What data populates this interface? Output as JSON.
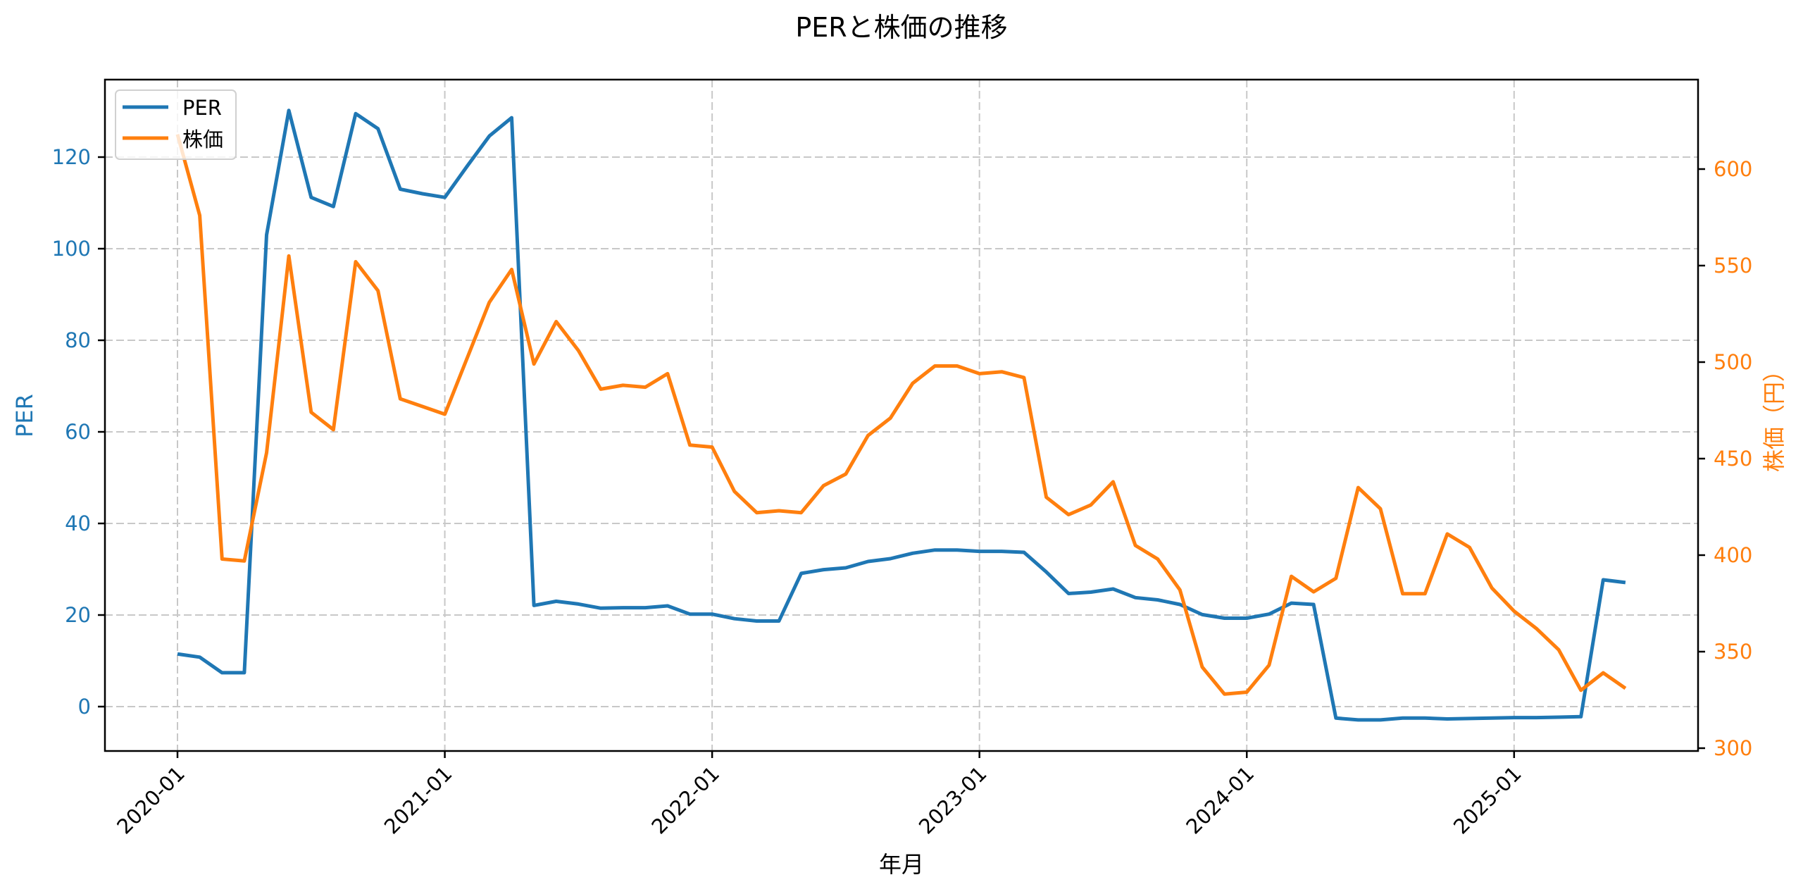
{
  "chart_data": {
    "type": "line",
    "title": "PERと株価の推移",
    "xlabel": "年月",
    "ylabel": "PER",
    "y2label": "株価（円）",
    "grid": true,
    "legend_position": "upper left",
    "legend": [
      "PER",
      "株価"
    ],
    "xticks": [
      "2020-01",
      "2021-01",
      "2022-01",
      "2023-01",
      "2024-01",
      "2025-01"
    ],
    "yticks": [
      0,
      20,
      40,
      60,
      80,
      100,
      120
    ],
    "y2ticks": [
      300,
      350,
      400,
      450,
      500,
      550,
      600
    ],
    "ylim": [
      -9.7,
      136.9
    ],
    "y2lim": [
      298.5,
      646.4
    ],
    "colors": {
      "PER": "#1f77b4",
      "株価": "#ff7f0e"
    },
    "x": [
      "2020-01",
      "2020-02",
      "2020-03",
      "2020-04",
      "2020-05",
      "2020-06",
      "2020-07",
      "2020-08",
      "2020-09",
      "2020-10",
      "2020-11",
      "2020-12",
      "2021-01",
      "2021-02",
      "2021-03",
      "2021-04",
      "2021-05",
      "2021-06",
      "2021-07",
      "2021-08",
      "2021-09",
      "2021-10",
      "2021-11",
      "2021-12",
      "2022-01",
      "2022-02",
      "2022-03",
      "2022-04",
      "2022-05",
      "2022-06",
      "2022-07",
      "2022-08",
      "2022-09",
      "2022-10",
      "2022-11",
      "2022-12",
      "2023-01",
      "2023-02",
      "2023-03",
      "2023-04",
      "2023-05",
      "2023-06",
      "2023-07",
      "2023-08",
      "2023-09",
      "2023-10",
      "2023-11",
      "2023-12",
      "2024-01",
      "2024-02",
      "2024-03",
      "2024-04",
      "2024-05",
      "2024-06",
      "2024-07",
      "2024-08",
      "2024-09",
      "2024-10",
      "2024-11",
      "2024-12",
      "2025-01",
      "2025-02",
      "2025-03",
      "2025-04",
      "2025-05",
      "2025-06"
    ],
    "series": [
      {
        "name": "PER",
        "axis": "left",
        "values": [
          11.5,
          10.8,
          7.4,
          7.4,
          103.0,
          130.2,
          111.2,
          109.2,
          129.5,
          126.2,
          113.0,
          112.0,
          111.2,
          118.0,
          124.6,
          128.6,
          22.1,
          23.0,
          22.4,
          21.5,
          21.6,
          21.6,
          22.0,
          20.2,
          20.2,
          19.2,
          18.7,
          18.7,
          29.1,
          29.9,
          30.3,
          31.7,
          32.3,
          33.5,
          34.2,
          34.2,
          33.9,
          33.9,
          33.7,
          29.4,
          24.7,
          25.0,
          25.7,
          23.8,
          23.3,
          22.3,
          20.1,
          19.3,
          19.3,
          20.2,
          22.6,
          22.3,
          -2.5,
          -2.9,
          -2.9,
          -2.5,
          -2.5,
          -2.7,
          -2.6,
          -2.5,
          -2.4,
          -2.4,
          -2.3,
          -2.2,
          27.7,
          27.1
        ]
      },
      {
        "name": "株価",
        "axis": "right",
        "values": [
          618,
          576,
          398,
          397,
          453,
          555,
          474,
          465,
          552,
          537,
          481,
          477,
          473,
          502,
          531,
          548,
          499,
          521,
          506,
          486,
          488,
          487,
          494,
          457,
          456,
          433,
          422,
          423,
          422,
          436,
          442,
          462,
          471,
          489,
          498,
          498,
          494,
          495,
          492,
          430,
          421,
          426,
          438,
          405,
          398,
          382,
          342,
          328,
          329,
          343,
          389,
          381,
          388,
          435,
          424,
          380,
          380,
          411,
          404,
          383,
          371,
          362,
          351,
          330,
          339,
          331
        ]
      }
    ]
  }
}
